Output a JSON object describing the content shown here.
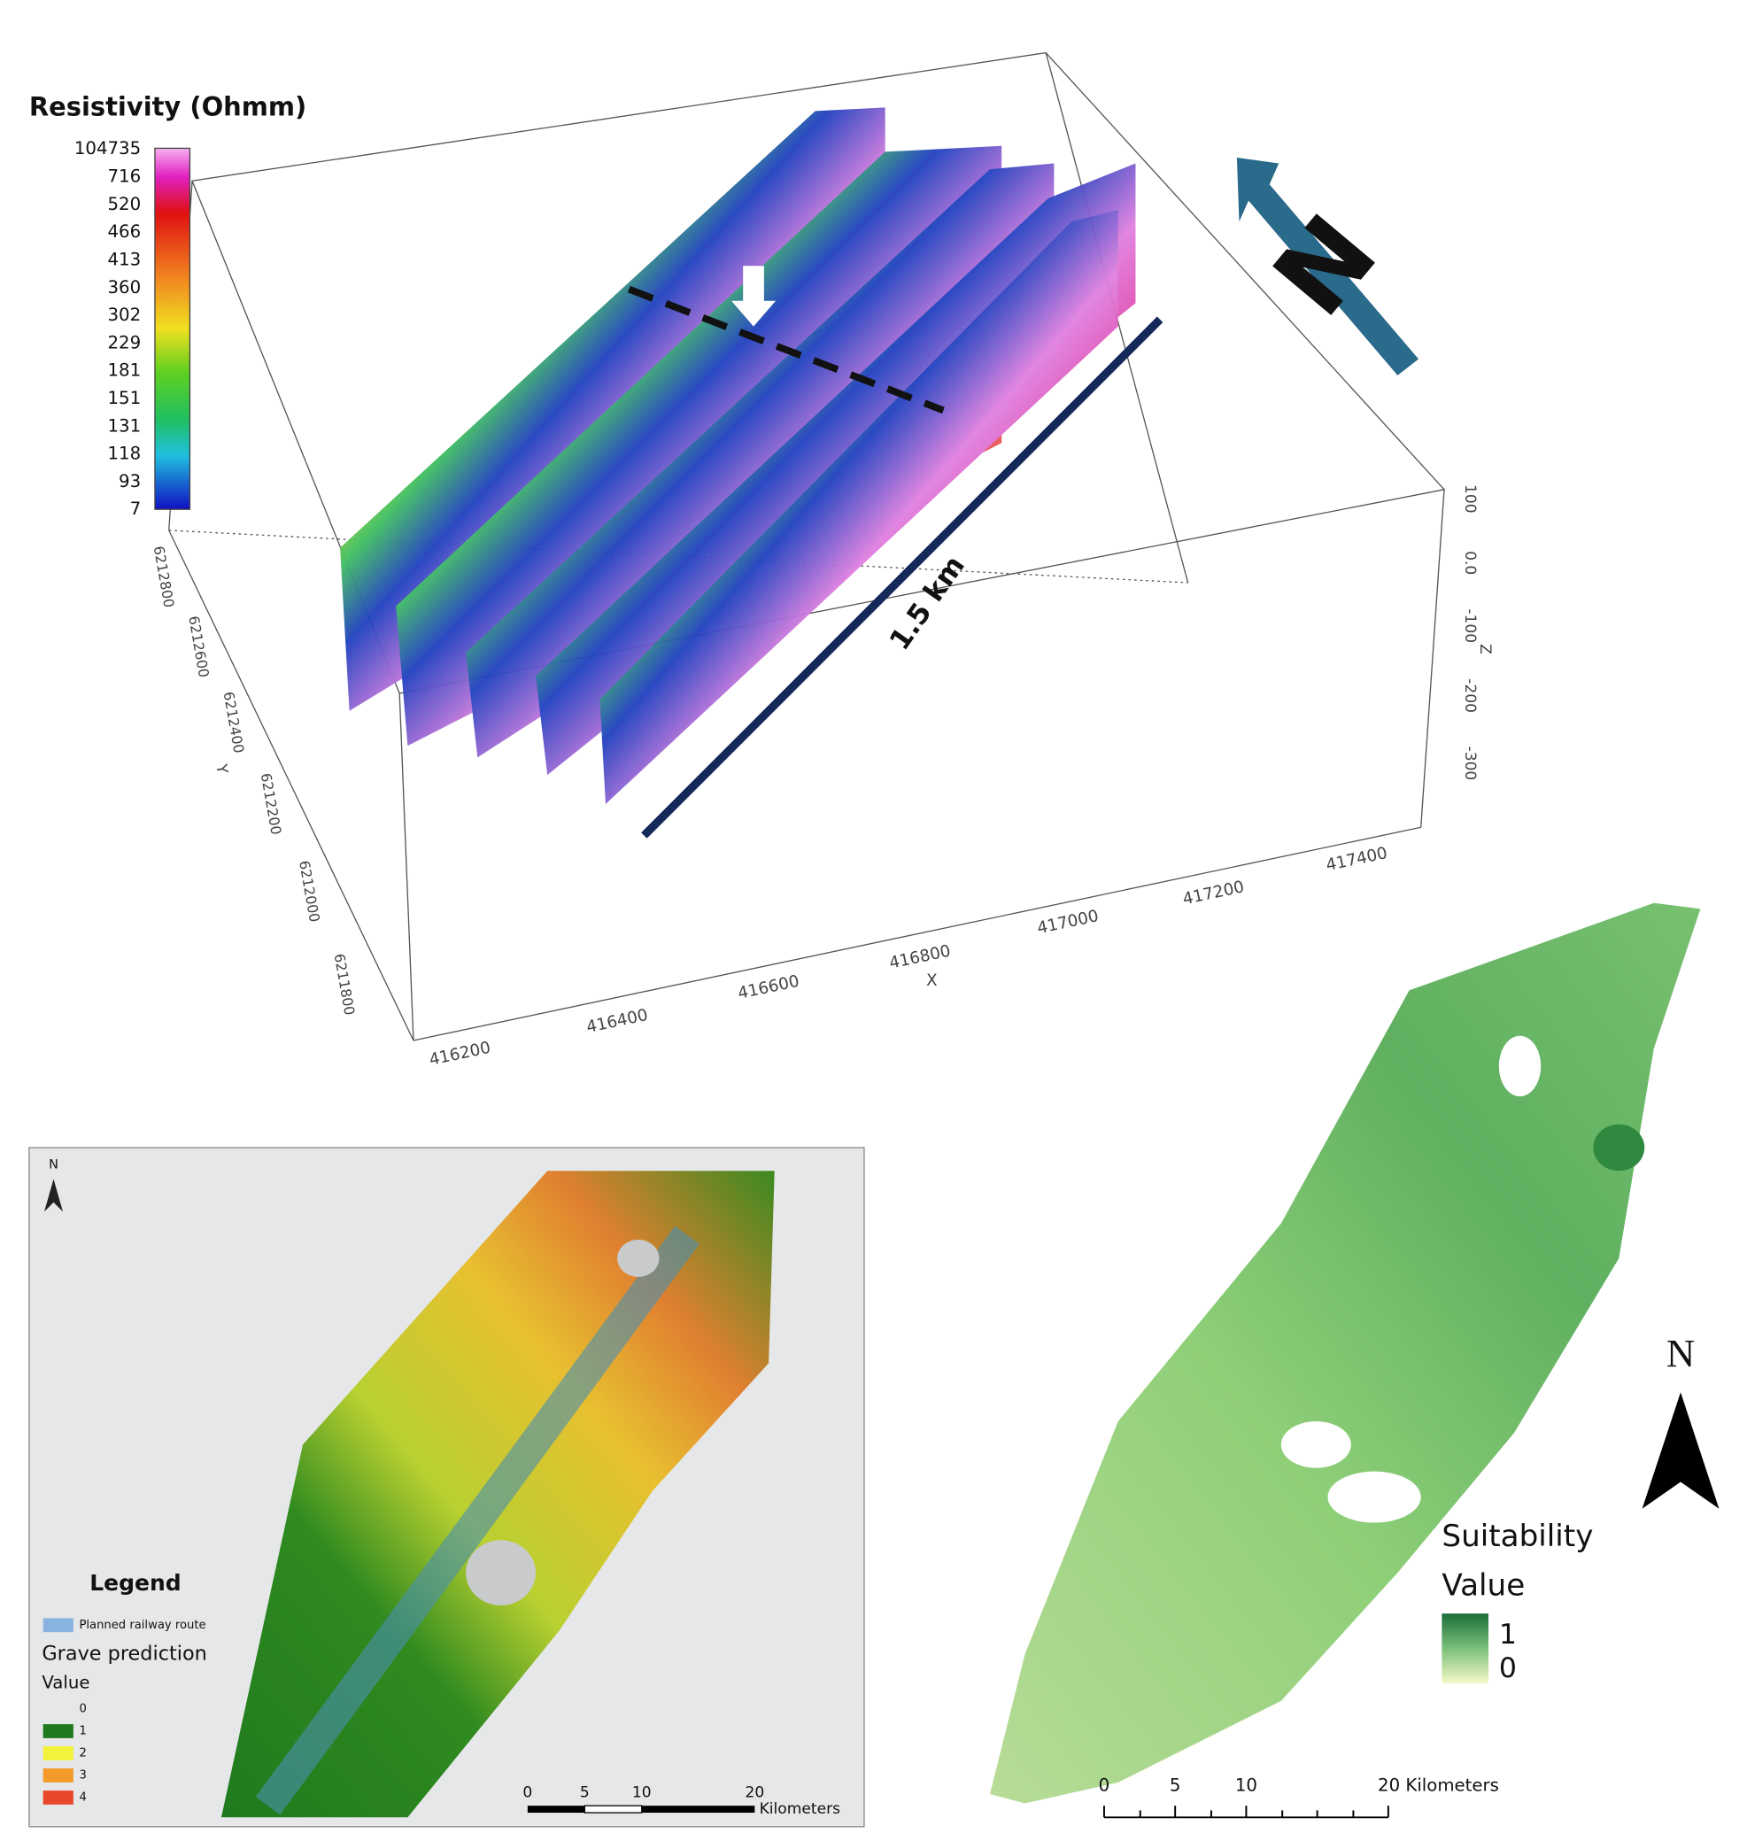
{
  "resistivity_panel": {
    "title": "Resistivity (Ohmm)",
    "colorbar_labels": [
      "104735",
      "716",
      "520",
      "466",
      "413",
      "360",
      "302",
      "229",
      "181",
      "151",
      "131",
      "118",
      "93",
      "7"
    ],
    "y_axis": {
      "label": "Y",
      "ticks": [
        "6212800",
        "6212600",
        "6212400",
        "6212200",
        "6212000",
        "6211800"
      ]
    },
    "z_axis": {
      "label": "Z",
      "ticks": [
        "100",
        "0.0",
        "-100",
        "-200",
        "-300"
      ]
    },
    "x_axis": {
      "label": "X",
      "ticks": [
        "416200",
        "416400",
        "416600",
        "416800",
        "417000",
        "417200",
        "417400"
      ]
    },
    "scale_annotation": "1.5 km",
    "north_label": "N"
  },
  "grave_map": {
    "north_label": "N",
    "legend": {
      "title": "Legend",
      "route": "Planned railway route",
      "layer": "Grave prediction",
      "value_title": "Value",
      "classes": [
        {
          "label": "0",
          "color": "#d9d9d9"
        },
        {
          "label": "1",
          "color": "#1f7a1f"
        },
        {
          "label": "2",
          "color": "#f2f23a"
        },
        {
          "label": "3",
          "color": "#f39a2a"
        },
        {
          "label": "4",
          "color": "#e8482a"
        }
      ]
    },
    "scale_bar": {
      "ticks": [
        "0",
        "5",
        "10",
        "20"
      ],
      "unit": "Kilometers"
    }
  },
  "suitability_map": {
    "north_label": "N",
    "legend_title": [
      "Suitability",
      "Value"
    ],
    "high": "1",
    "low": "0",
    "scale_bar": {
      "ticks": [
        "0",
        "5",
        "10",
        "20 Kilometers"
      ]
    }
  }
}
